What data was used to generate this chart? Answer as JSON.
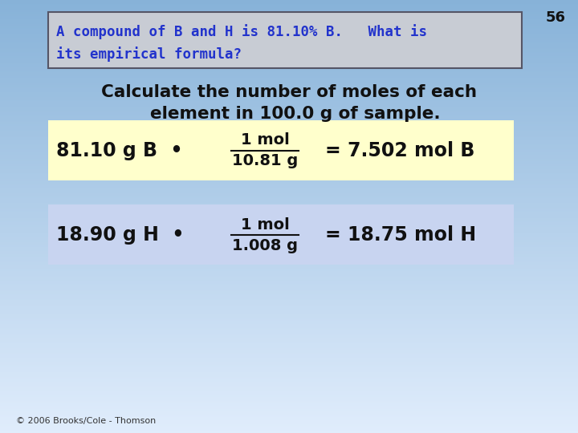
{
  "slide_number": "56",
  "bg_color_topleft": "#6699cc",
  "bg_color_topright": "#7aabdd",
  "bg_color_bottomleft": "#ddeeff",
  "bg_color_bottomright": "#eef5ff",
  "title_text_line1": "A compound of B and H is 81.10% B.   What is",
  "title_text_line2": "its empirical formula?",
  "title_text_color": "#2233cc",
  "title_box_bg": "#c8ccd4",
  "title_box_border": "#555566",
  "body_line1": "Calculate the number of moles of each",
  "body_line2": "  element in 100.0 g of sample.",
  "body_text_color": "#111111",
  "box1_bg": "#ffffcc",
  "box1_text_left": "81.10 g B  •",
  "box1_frac_num": "1 mol",
  "box1_frac_den": "10.81 g",
  "box1_text_right": "= 7.502 mol B",
  "box2_bg": "#c8d4f0",
  "box2_text_left": "18.90 g H  •",
  "box2_frac_num": "1 mol",
  "box2_frac_den": "1.008 g",
  "box2_text_right": "= 18.75 mol H",
  "footer_text": "© 2006 Brooks/Cole - Thomson",
  "text_color_black": "#111111",
  "slide_num_color": "#111111"
}
